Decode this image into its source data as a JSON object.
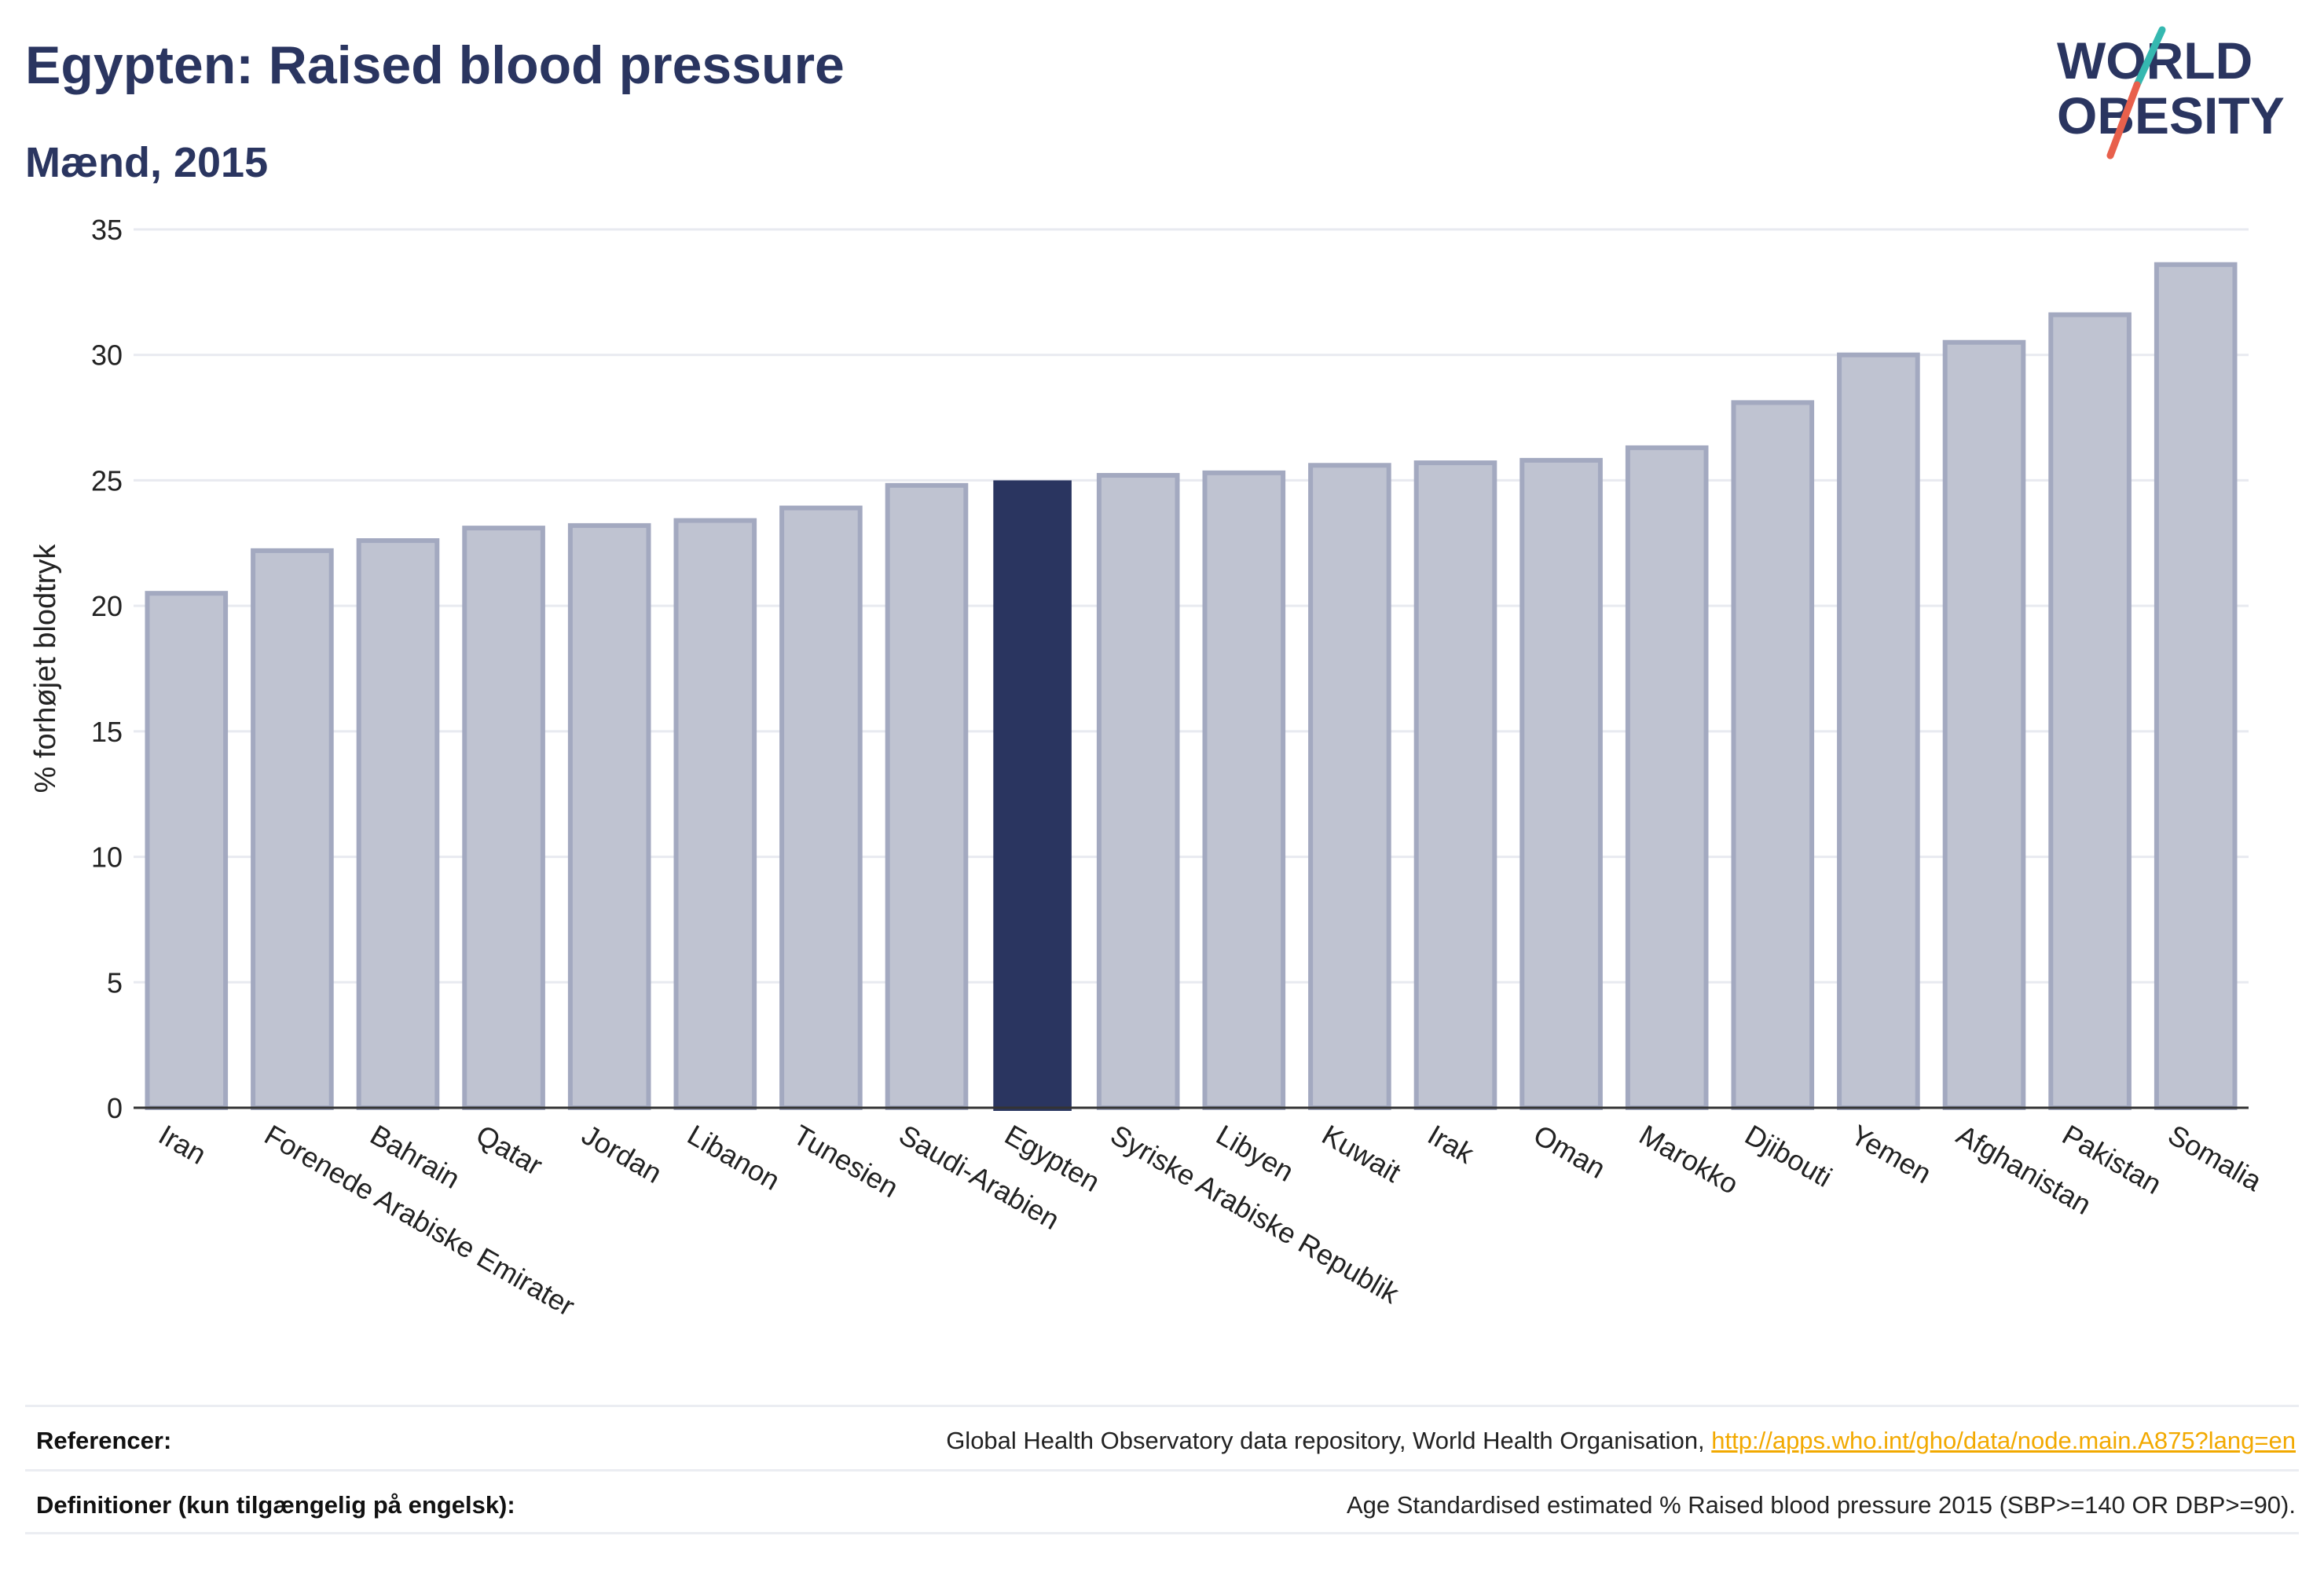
{
  "header": {
    "title": "Egypten: Raised blood pressure",
    "subtitle": "Mænd, 2015"
  },
  "logo": {
    "line1": "WORLD",
    "line2": "OBESITY",
    "name": "world-obesity-logo"
  },
  "chart_data": {
    "type": "bar",
    "ylabel": "% forhøjet blodtryk",
    "xlabel": "",
    "ylim": [
      0,
      35
    ],
    "yticks": [
      0,
      5,
      10,
      15,
      20,
      25,
      30,
      35
    ],
    "grid": true,
    "highlight": "Egypten",
    "categories": [
      "Iran",
      "Forenede Arabiske Emirater",
      "Bahrain",
      "Qatar",
      "Jordan",
      "Libanon",
      "Tunesien",
      "Saudi-Arabien",
      "Egypten",
      "Syriske Arabiske Republik",
      "Libyen",
      "Kuwait",
      "Irak",
      "Oman",
      "Marokko",
      "Djibouti",
      "Yemen",
      "Afghanistan",
      "Pakistan",
      "Somalia"
    ],
    "values": [
      20.5,
      22.2,
      22.6,
      23.1,
      23.2,
      23.4,
      23.9,
      24.8,
      25.0,
      25.2,
      25.3,
      25.6,
      25.7,
      25.8,
      26.3,
      28.1,
      30.0,
      30.5,
      31.6,
      33.6
    ]
  },
  "colors": {
    "highlight_bar": "#2a3560",
    "bar_fill": "#bfc3d1",
    "bar_stroke": "#a3a9c0",
    "grid": "#e8eaf0",
    "logo_navy": "#2a3560",
    "logo_teal": "#35b8b0",
    "logo_coral": "#e8604c",
    "link": "#f2a900"
  },
  "footer": {
    "references_label": "Referencer:",
    "references_text": "Global Health Observatory data repository, World Health Organisation, ",
    "references_link": "http://apps.who.int/gho/data/node.main.A875?lang=en",
    "definitions_label": "Definitioner (kun tilgængelig på engelsk):",
    "definitions_text": "Age Standardised estimated % Raised blood pressure 2015 (SBP>=140 OR DBP>=90)."
  }
}
